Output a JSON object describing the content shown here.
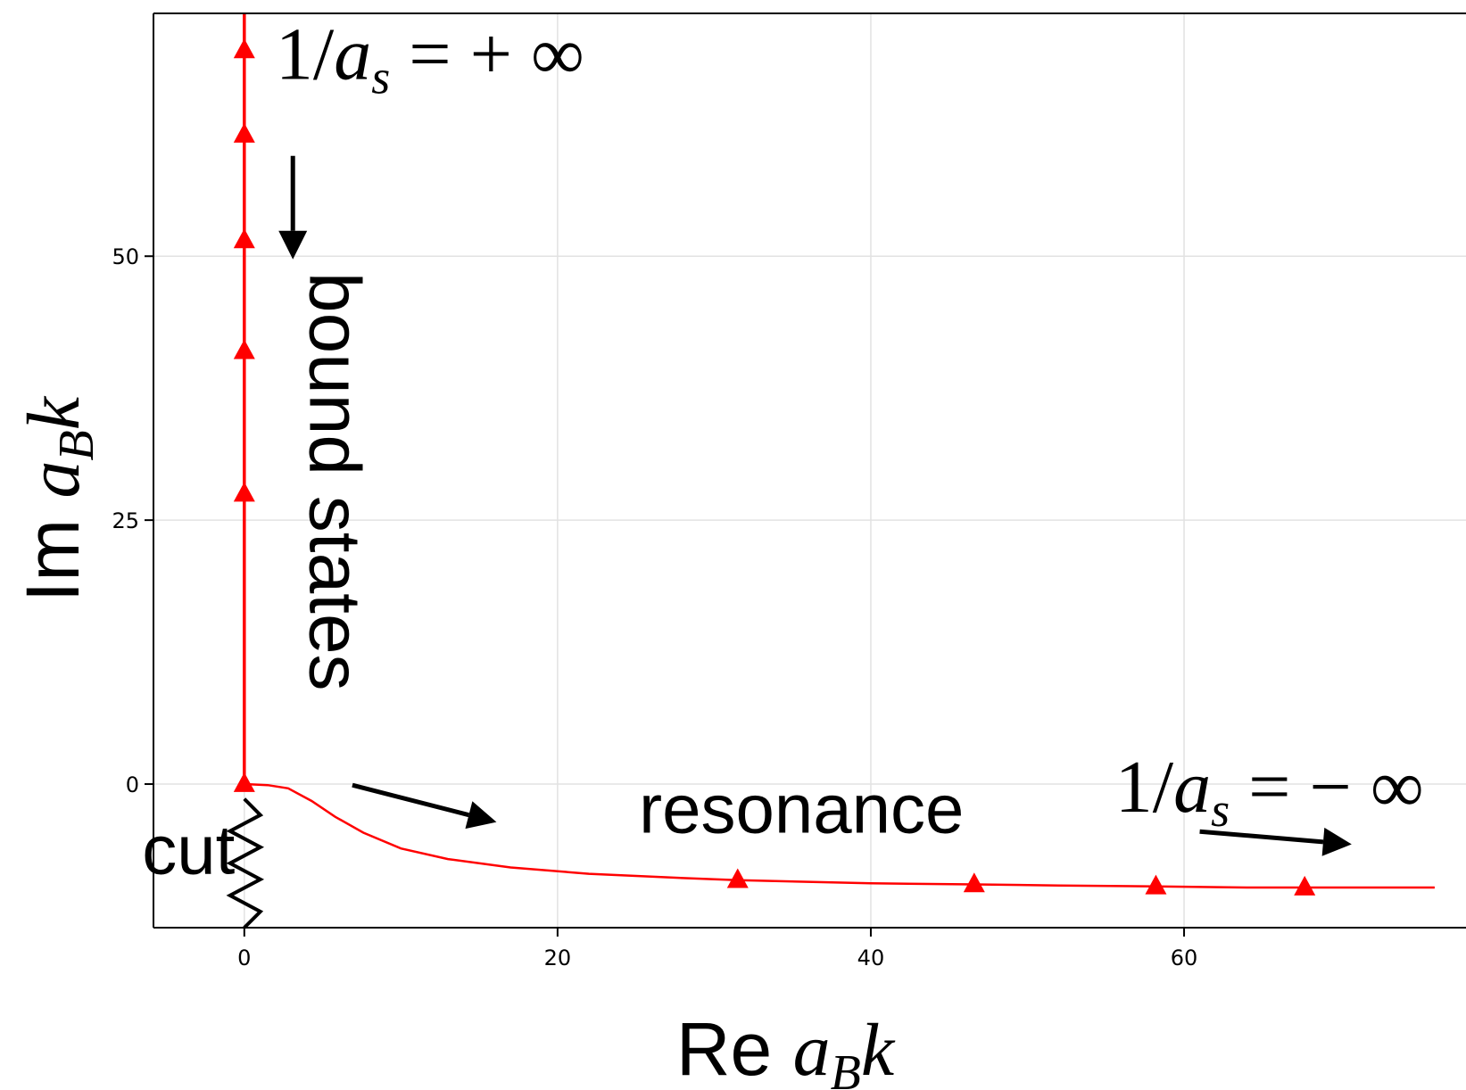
{
  "chart_data": {
    "type": "line",
    "title": "",
    "xlabel": {
      "prefix": "Re ",
      "var": "a",
      "sub": "B",
      "suffix": "k"
    },
    "ylabel": {
      "prefix": "Im ",
      "var": "a",
      "sub": "B",
      "suffix": "k"
    },
    "xlim": [
      -5.8,
      78
    ],
    "ylim": [
      -13.6,
      73
    ],
    "xticks": [
      0,
      20,
      40,
      60
    ],
    "yticks": [
      0,
      25,
      50
    ],
    "grid": true,
    "colors": {
      "series": "#ff0000",
      "annotation": "#000000",
      "grid": "#e2e2e2"
    },
    "series": [
      {
        "x": [
          0,
          0
        ],
        "y": [
          0,
          73
        ],
        "markers": [
          {
            "x": 0,
            "y": 69.5
          },
          {
            "x": 0,
            "y": 61.5
          },
          {
            "x": 0,
            "y": 51.5
          },
          {
            "x": 0,
            "y": 41
          },
          {
            "x": 0,
            "y": 27.5
          },
          {
            "x": 0,
            "y": 0
          }
        ]
      },
      {
        "x": [
          0,
          1.5,
          2.8,
          4.3,
          5.8,
          7.6,
          10,
          13,
          17,
          22,
          28,
          31.5,
          40,
          46.6,
          52,
          58.2,
          64,
          67.7,
          76
        ],
        "y": [
          0,
          -0.1,
          -0.4,
          -1.6,
          -3.1,
          -4.6,
          -6.1,
          -7.1,
          -7.9,
          -8.5,
          -8.9,
          -9.1,
          -9.4,
          -9.5,
          -9.6,
          -9.7,
          -9.8,
          -9.8,
          -9.8
        ],
        "markers": [
          {
            "x": 31.5,
            "y": -9.1
          },
          {
            "x": 46.6,
            "y": -9.5
          },
          {
            "x": 58.2,
            "y": -9.7
          },
          {
            "x": 67.7,
            "y": -9.8
          }
        ]
      }
    ],
    "annotations": [
      {
        "id": "plus-inf",
        "kind": "equation",
        "lhs": "1/",
        "var": "a",
        "sub": "s",
        "rhs": " = + ∞",
        "x": 2,
        "y": 66.8
      },
      {
        "id": "bound-states",
        "kind": "label",
        "text": "bound states",
        "x": 4.2,
        "y": 48.5
      },
      {
        "id": "minus-inf",
        "kind": "equation",
        "lhs": "1/",
        "var": "a",
        "sub": "s",
        "rhs": " = − ∞",
        "x": 55.6,
        "y": -2.6
      },
      {
        "id": "resonance",
        "kind": "label",
        "text": "resonance",
        "x": 25.2,
        "y": -4.6
      },
      {
        "id": "cut",
        "kind": "label",
        "text": "cut",
        "x": -0.6,
        "y": -8.5
      }
    ],
    "arrows": [
      {
        "from": [
          3.1,
          59.5
        ],
        "to": [
          3.1,
          49.7
        ]
      },
      {
        "from": [
          6.9,
          -0.1
        ],
        "to": [
          16.1,
          -3.6
        ]
      },
      {
        "from": [
          61,
          -4.5
        ],
        "to": [
          70.7,
          -5.7
        ]
      }
    ],
    "branch_cut": {
      "x": 0,
      "y_from": -1.4,
      "y_to": -13.6,
      "zigzags": 4
    }
  }
}
